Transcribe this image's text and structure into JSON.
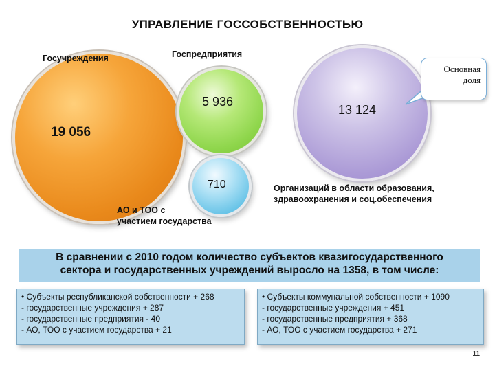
{
  "title": "УПРАВЛЕНИЕ  ГОССОБСТВЕННОСТЬЮ",
  "bubbles": {
    "gosuch": {
      "label": "Госучреждения",
      "value": "19 056",
      "color": "#f0962a"
    },
    "gospred": {
      "label": "Госпредприятия",
      "value": "5 936",
      "color": "#8fd64c"
    },
    "ao": {
      "label_line1": "АО и ТОО с",
      "label_line2": "участием государства",
      "value": "710",
      "color": "#62c1e6"
    },
    "edu": {
      "label_line1": "Организаций в области образования,",
      "label_line2": "здравоохранения и соц.обеспечения",
      "value": "13 124",
      "color": "#ab9ad6"
    }
  },
  "callout": {
    "line1": "Основная",
    "line2": "доля"
  },
  "summary": {
    "line1": "В сравнении с 2010 годом количество субъектов  квазигосударственного",
    "line2": "сектора и государственных учреждений выросло на 1358, в том числе:"
  },
  "box_left": {
    "items": [
      "• Субъекты республиканской собственности + 268",
      "-  государственные учреждения  + 287",
      "-  государственные предприятия   - 40",
      "-  АО, ТОО с участием государства  + 21"
    ]
  },
  "box_right": {
    "items": [
      "• Субъекты коммунальной собственности  + 1090",
      "-  государственные учреждения  + 451",
      "-  государственные предприятия  + 368",
      "-  АО, ТОО с участием государства  + 271"
    ]
  },
  "page_number": "11"
}
